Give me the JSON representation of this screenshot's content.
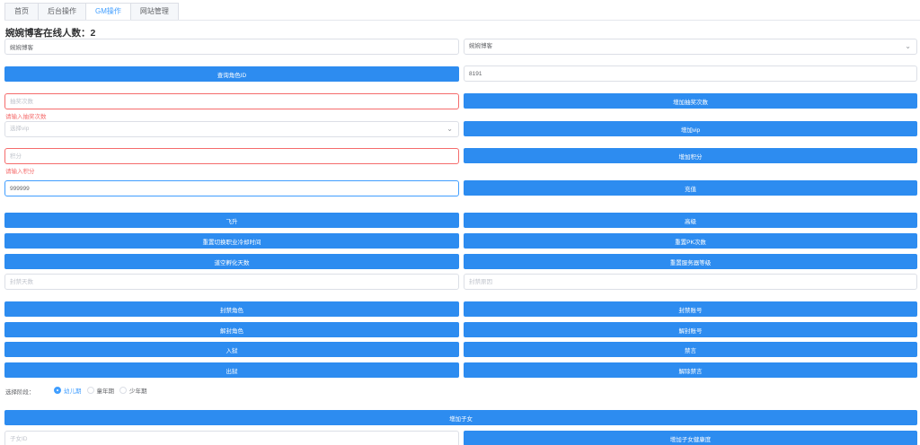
{
  "tabs": [
    "首页",
    "后台操作",
    "GM操作",
    "网站管理"
  ],
  "title": "婉婉博客在线人数：2",
  "server_input": {
    "value": "婉婉博客"
  },
  "server_select": {
    "value": "婉婉博客"
  },
  "query_role_button": "查询角色ID",
  "role_id_input": {
    "value": "8191"
  },
  "lottery_input": {
    "placeholder": "抽奖次数",
    "error": "请输入抽奖次数"
  },
  "add_lottery_button": "增加抽奖次数",
  "vip_select": {
    "placeholder": "选择vip"
  },
  "add_vip_button": "增加vip",
  "points_input": {
    "placeholder": "积分",
    "error": "请输入积分"
  },
  "add_points_button": "增加积分",
  "recharge_input": {
    "value": "999999"
  },
  "recharge_button": "充值",
  "buttons_a": [
    [
      "飞升",
      "高级"
    ],
    [
      "重置切换职业冷却时间",
      "重置PK次数"
    ],
    [
      "道空孵化天数",
      "重置服务器等级"
    ]
  ],
  "ban_days_input": {
    "placeholder": "封禁天数"
  },
  "ban_reason_input": {
    "placeholder": "封禁原因"
  },
  "buttons_b": [
    [
      "封禁角色",
      "封禁账号"
    ],
    [
      "解封角色",
      "解封账号"
    ],
    [
      "入狱",
      "禁言"
    ],
    [
      "出狱",
      "解除禁言"
    ]
  ],
  "stage": {
    "label": "选择阶段：",
    "options": [
      "幼儿期",
      "童年期",
      "少年期"
    ],
    "selected": 0
  },
  "add_child_button": "增加子女",
  "child_id_input": {
    "placeholder": "子女ID"
  },
  "add_child_health_button": "增加子女健康度",
  "colors": {
    "primary": "#2d8cf0",
    "active_tab": "#409eff",
    "error": "#f56c6c"
  }
}
